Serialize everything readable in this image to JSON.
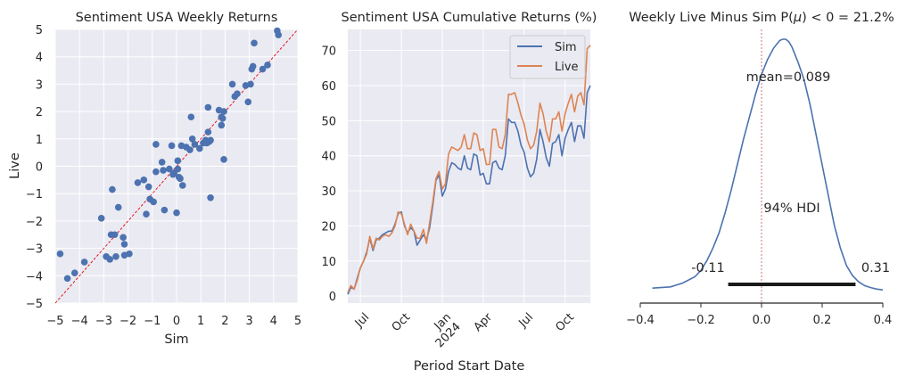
{
  "chart_data": [
    {
      "type": "scatter",
      "title": "Sentiment USA Weekly Returns",
      "xlabel": "Sim",
      "ylabel": "Live",
      "xlim": [
        -5,
        5
      ],
      "ylim": [
        -5,
        5
      ],
      "xticks": [
        "−5",
        "−4",
        "−3",
        "−2",
        "−1",
        "0",
        "1",
        "2",
        "3",
        "4",
        "5"
      ],
      "yticks": [
        "−5",
        "−4",
        "−3",
        "−2",
        "−1",
        "0",
        "1",
        "2",
        "3",
        "4",
        "5"
      ],
      "reference_line": "y = x (red dashed)",
      "colors": {
        "points": "#4c72b0",
        "reference": "#e8000b"
      },
      "points": [
        [
          -4.8,
          -3.2
        ],
        [
          -4.5,
          -4.1
        ],
        [
          -4.2,
          -3.9
        ],
        [
          -3.8,
          -3.5
        ],
        [
          -3.1,
          -1.9
        ],
        [
          -2.9,
          -3.3
        ],
        [
          -2.75,
          -3.4
        ],
        [
          -2.7,
          -2.5
        ],
        [
          -2.65,
          -0.85
        ],
        [
          -2.55,
          -2.5
        ],
        [
          -2.5,
          -3.3
        ],
        [
          -2.4,
          -1.5
        ],
        [
          -2.15,
          -3.25
        ],
        [
          -2.15,
          -2.85
        ],
        [
          -2.2,
          -2.6
        ],
        [
          -1.95,
          -3.2
        ],
        [
          -1.6,
          -0.6
        ],
        [
          -1.35,
          -0.5
        ],
        [
          -1.25,
          -1.75
        ],
        [
          -1.15,
          -0.75
        ],
        [
          -1.1,
          -1.2
        ],
        [
          -0.95,
          -1.3
        ],
        [
          -0.85,
          -0.2
        ],
        [
          -0.85,
          0.8
        ],
        [
          -0.6,
          0.15
        ],
        [
          -0.55,
          -0.15
        ],
        [
          -0.5,
          -1.6
        ],
        [
          -0.3,
          -0.1
        ],
        [
          -0.2,
          0.75
        ],
        [
          -0.15,
          -0.3
        ],
        [
          -0.1,
          -0.25
        ],
        [
          0.0,
          -1.7
        ],
        [
          0.05,
          -0.1
        ],
        [
          0.05,
          0.2
        ],
        [
          0.1,
          -0.4
        ],
        [
          0.2,
          0.75
        ],
        [
          0.15,
          -0.45
        ],
        [
          0.25,
          -0.7
        ],
        [
          0.4,
          0.7
        ],
        [
          0.55,
          0.6
        ],
        [
          0.6,
          1.8
        ],
        [
          0.65,
          1.0
        ],
        [
          0.75,
          0.8
        ],
        [
          0.95,
          0.65
        ],
        [
          1.1,
          0.85
        ],
        [
          1.2,
          0.95
        ],
        [
          1.25,
          0.85
        ],
        [
          1.3,
          1.25
        ],
        [
          1.3,
          2.15
        ],
        [
          1.35,
          0.9
        ],
        [
          1.4,
          -1.15
        ],
        [
          1.4,
          0.95
        ],
        [
          1.75,
          2.05
        ],
        [
          1.85,
          1.8
        ],
        [
          1.85,
          1.5
        ],
        [
          1.9,
          1.75
        ],
        [
          1.95,
          2.0
        ],
        [
          1.95,
          0.25
        ],
        [
          2.3,
          3.0
        ],
        [
          2.4,
          2.55
        ],
        [
          2.5,
          2.65
        ],
        [
          2.85,
          2.95
        ],
        [
          2.95,
          2.35
        ],
        [
          3.05,
          3.0
        ],
        [
          3.1,
          3.55
        ],
        [
          3.15,
          3.65
        ],
        [
          3.2,
          4.5
        ],
        [
          3.55,
          3.55
        ],
        [
          3.75,
          3.7
        ],
        [
          4.15,
          4.95
        ],
        [
          4.2,
          4.8
        ]
      ]
    },
    {
      "type": "line",
      "title": "Sentiment USA Cumulative Returns (%)",
      "xlabel": "Period Start Date",
      "ylabel": "",
      "ylim": [
        -2,
        76
      ],
      "yticks": [
        "0",
        "10",
        "20",
        "30",
        "40",
        "50",
        "60",
        "70"
      ],
      "xticks": [
        "Jul",
        "Oct",
        "Jan\n2024",
        "Apr",
        "Jul",
        "Oct"
      ],
      "legend_position": "upper right",
      "series": [
        {
          "name": "Sim",
          "color": "#4c72b0",
          "values": [
            0.5,
            2.5,
            2.0,
            5.0,
            8.0,
            10.0,
            12.5,
            16.5,
            13.0,
            16.0,
            16.5,
            17.5,
            18.0,
            18.5,
            18.5,
            20.5,
            23.5,
            24.0,
            20.0,
            18.0,
            19.5,
            18.5,
            14.5,
            16.0,
            17.5,
            16.0,
            19.5,
            26.0,
            33.0,
            34.5,
            28.5,
            30.5,
            35.5,
            38.0,
            37.5,
            36.5,
            36.0,
            40.0,
            36.5,
            36.0,
            40.5,
            40.0,
            34.5,
            35.0,
            32.0,
            32.0,
            38.0,
            38.5,
            36.5,
            36.0,
            40.0,
            50.5,
            49.5,
            49.5,
            47.0,
            43.0,
            41.0,
            36.5,
            34.0,
            35.0,
            39.0,
            47.5,
            44.0,
            39.5,
            37.0,
            43.5,
            44.0,
            46.0,
            40.0,
            45.0,
            47.5,
            49.5,
            44.0,
            48.5,
            48.5,
            45.0,
            58.0,
            60.0
          ]
        },
        {
          "name": "Live",
          "color": "#dd8452",
          "values": [
            1.0,
            3.0,
            2.0,
            4.5,
            8.0,
            10.0,
            12.0,
            17.0,
            13.5,
            16.5,
            16.0,
            17.0,
            17.5,
            17.0,
            18.0,
            20.0,
            24.0,
            23.5,
            20.5,
            17.5,
            20.5,
            18.5,
            16.5,
            16.5,
            19.0,
            15.0,
            21.0,
            27.0,
            33.5,
            35.5,
            30.5,
            32.0,
            40.5,
            42.5,
            42.0,
            41.5,
            42.5,
            46.0,
            42.0,
            42.0,
            46.5,
            46.0,
            41.5,
            42.0,
            37.5,
            37.5,
            47.5,
            47.5,
            42.5,
            42.0,
            46.0,
            57.5,
            57.5,
            58.0,
            55.0,
            51.5,
            49.0,
            44.5,
            42.0,
            43.0,
            47.0,
            55.0,
            52.0,
            47.0,
            44.0,
            50.5,
            50.5,
            52.5,
            47.0,
            52.0,
            55.0,
            57.5,
            52.5,
            57.0,
            58.0,
            54.5,
            70.5,
            71.5
          ]
        }
      ]
    },
    {
      "type": "area",
      "title": "Weekly Live Minus Sim P(μ) < 0 = 21.2%",
      "title_parts": {
        "prefix": "Weekly Live Minus Sim P(",
        "mu": "μ",
        "suffix": ") < 0 = 21.2%"
      },
      "xlim": [
        -0.4,
        0.4
      ],
      "xticks": [
        "−0.4",
        "−0.2",
        "0.0",
        "0.2",
        "0.4"
      ],
      "annotations": {
        "mean": "mean=0.089",
        "hdi": "94% HDI",
        "hdi_low": "-0.11",
        "hdi_high": "0.31"
      },
      "hdi": [
        -0.11,
        0.31
      ],
      "reference_x": 0,
      "colors": {
        "density": "#4c72b0",
        "hdi": "#1a1a1a",
        "reference": "#c44e52"
      },
      "density": {
        "x": [
          -0.36,
          -0.3,
          -0.26,
          -0.22,
          -0.2,
          -0.18,
          -0.16,
          -0.14,
          -0.12,
          -0.1,
          -0.08,
          -0.06,
          -0.04,
          -0.02,
          0.0,
          0.02,
          0.04,
          0.06,
          0.07,
          0.08,
          0.09,
          0.1,
          0.12,
          0.14,
          0.16,
          0.18,
          0.2,
          0.22,
          0.24,
          0.26,
          0.28,
          0.3,
          0.32,
          0.34,
          0.36,
          0.38,
          0.4
        ],
        "y": [
          0.01,
          0.015,
          0.03,
          0.055,
          0.08,
          0.12,
          0.17,
          0.23,
          0.31,
          0.4,
          0.5,
          0.6,
          0.69,
          0.78,
          0.86,
          0.92,
          0.965,
          0.995,
          1.0,
          1.0,
          0.99,
          0.97,
          0.91,
          0.84,
          0.74,
          0.62,
          0.5,
          0.38,
          0.26,
          0.17,
          0.1,
          0.06,
          0.035,
          0.02,
          0.012,
          0.006,
          0.003
        ]
      }
    }
  ]
}
